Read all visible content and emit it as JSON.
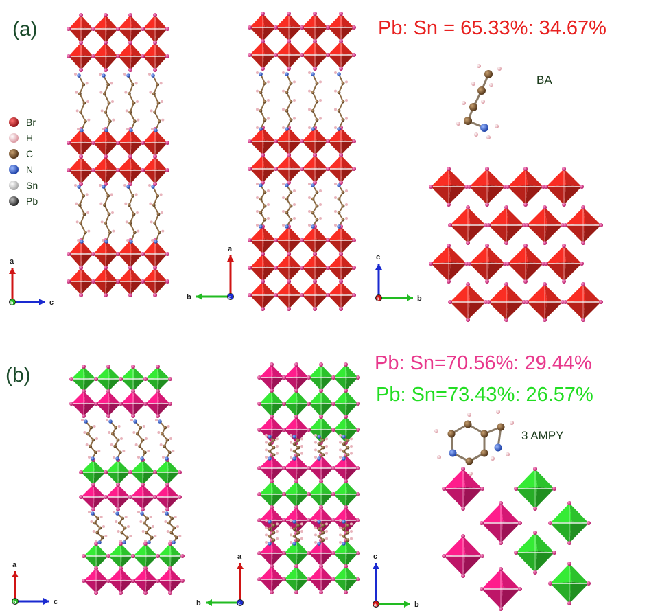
{
  "panel_a": {
    "label": "(a)",
    "ratio": "Pb: Sn = 65.33%: 34.67%",
    "ratio_color": "#e8201f",
    "molecule_name": "BA",
    "octa_color": "#d9271e",
    "legend": [
      {
        "label": "Br",
        "color": "#b3121a",
        "icon": "br-atom-icon"
      },
      {
        "label": "H",
        "color": "#e8a8b0",
        "icon": "h-atom-icon"
      },
      {
        "label": "C",
        "color": "#7a5632",
        "icon": "c-atom-icon"
      },
      {
        "label": "N",
        "color": "#2a5bd6",
        "icon": "n-atom-icon"
      },
      {
        "label": "Sn",
        "color": "#c8c8c8",
        "icon": "sn-atom-icon"
      },
      {
        "label": "Pb",
        "color": "#444444",
        "icon": "pb-atom-icon"
      }
    ],
    "axes": [
      {
        "up": "a",
        "right": "c",
        "center": "b"
      },
      {
        "up": "a",
        "left": "b",
        "center": "c"
      },
      {
        "up": "c",
        "right": "b",
        "center": "a"
      }
    ]
  },
  "panel_b": {
    "label": "(b)",
    "ratio_1": "Pb: Sn=70.56%: 29.44%",
    "ratio_1_color": "#e8388c",
    "ratio_2": "Pb: Sn=73.43%: 26.57%",
    "ratio_2_color": "#22dd22",
    "molecule_name": "3 AMPY",
    "octa_color_pb": "#e0197a",
    "octa_color_sn": "#2ecc2e",
    "axes": [
      {
        "up": "a",
        "right": "c",
        "center": "b"
      },
      {
        "up": "a",
        "left": "b",
        "center": "c"
      },
      {
        "up": "c",
        "right": "b",
        "center": "a"
      }
    ]
  }
}
